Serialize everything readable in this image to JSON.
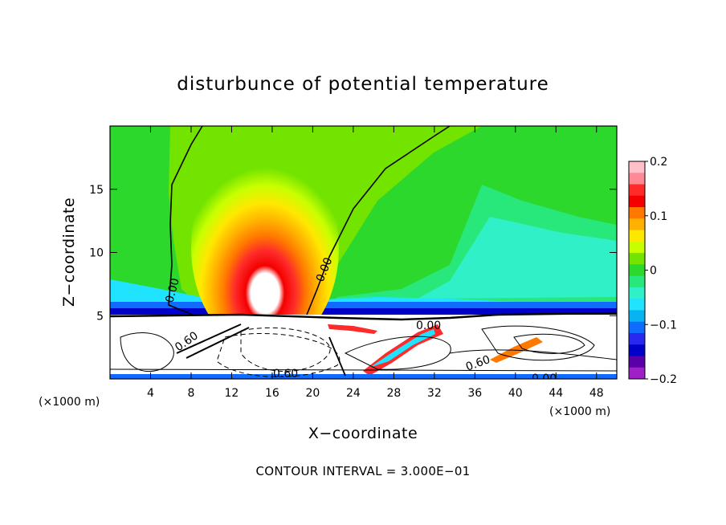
{
  "chart_data": {
    "type": "heatmap",
    "title": "disturbunce of potential temperature",
    "xlabel": "X−coordinate",
    "ylabel": "Z−coordinate",
    "x_unit": "(×1000 m)",
    "xlim": [
      0,
      50
    ],
    "ylim": [
      0,
      20
    ],
    "x_ticks": [
      4,
      8,
      12,
      16,
      20,
      24,
      28,
      32,
      36,
      40,
      44,
      48
    ],
    "y_ticks": [
      5,
      10,
      15
    ],
    "colorbar": {
      "range": [
        -0.2,
        0.2
      ],
      "ticks": [
        0.2,
        0.1,
        0,
        -0.1,
        -0.2
      ],
      "tick_labels": [
        "0.2",
        "0.1",
        "0",
        "−0.1",
        "−0.2"
      ],
      "colors": [
        "#ffc0c8",
        "#ff8a95",
        "#ff2a2a",
        "#f40000",
        "#ff7800",
        "#ffb000",
        "#ffe800",
        "#c8ff00",
        "#73e400",
        "#2cd82c",
        "#28e87c",
        "#30f0c8",
        "#20e4ff",
        "#08b4f0",
        "#106cff",
        "#2828f0",
        "#0000c8",
        "#5a00a8",
        "#a020c8"
      ]
    },
    "contour_labels": [
      "0.00",
      "0.00",
      "0.00",
      "0.60",
      "0.60",
      "0.60",
      "0.00"
    ],
    "contour_interval_text": "CONTOUR INTERVAL = 3.000E−01"
  }
}
